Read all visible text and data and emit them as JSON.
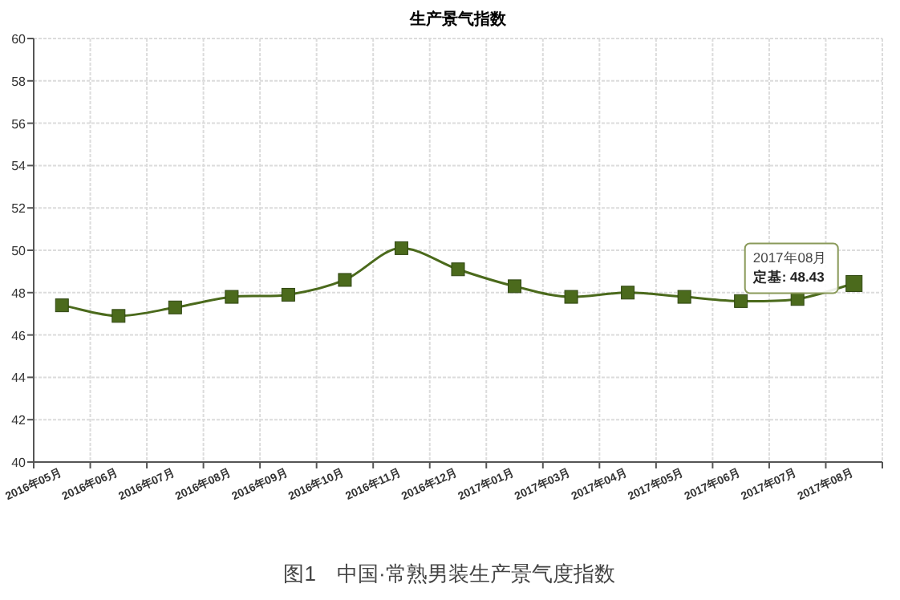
{
  "chart_data": {
    "type": "line",
    "title": "生产景气指数",
    "categories": [
      "2016年05月",
      "2016年06月",
      "2016年07月",
      "2016年08月",
      "2016年09月",
      "2016年10月",
      "2016年11月",
      "2016年12月",
      "2017年01月",
      "2017年03月",
      "2017年04月",
      "2017年05月",
      "2017年06月",
      "2017年07月",
      "2017年08月"
    ],
    "series": [
      {
        "color": "#4b6a1c",
        "values": [
          47.4,
          46.9,
          47.3,
          47.8,
          47.9,
          48.6,
          50.1,
          49.1,
          48.3,
          47.8,
          48.0,
          47.8,
          47.6,
          47.7,
          48.43
        ]
      }
    ],
    "ylim": [
      40,
      60
    ],
    "yticks": [
      40,
      42,
      44,
      46,
      48,
      50,
      52,
      54,
      56,
      58,
      60
    ],
    "grid": true,
    "marker": "square",
    "line_style": "solid",
    "annotations": [
      {
        "text": "2017年08月",
        "x": "2017年08月",
        "y": 48.43
      },
      {
        "text": "定基: 48.43",
        "x": "2017年08月",
        "y": 48.43
      },
      "图1　中国·常熟男装生产景气度指数"
    ]
  }
}
